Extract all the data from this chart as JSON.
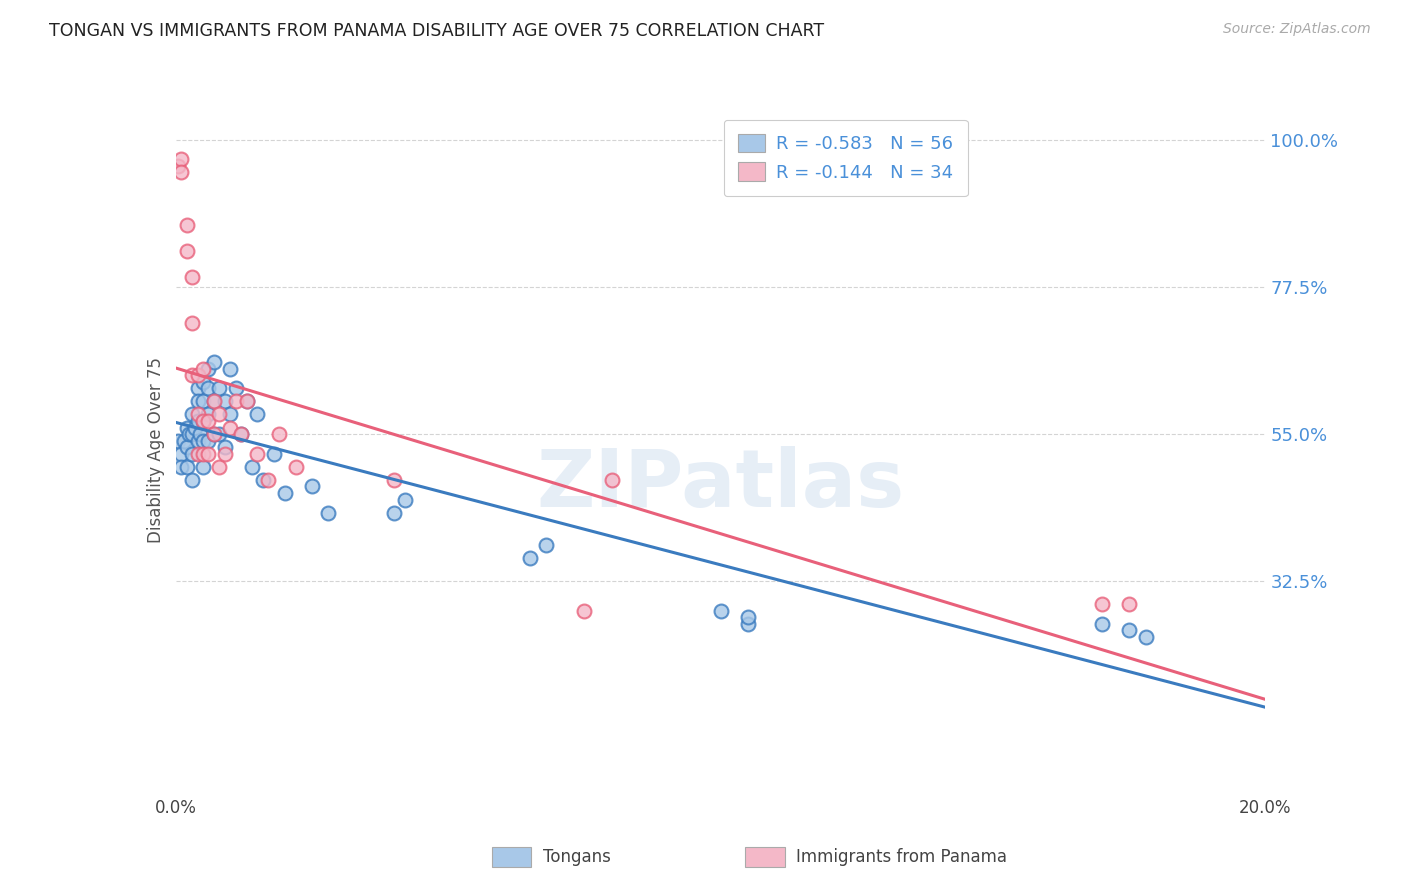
{
  "title": "TONGAN VS IMMIGRANTS FROM PANAMA DISABILITY AGE OVER 75 CORRELATION CHART",
  "source": "Source: ZipAtlas.com",
  "ylabel": "Disability Age Over 75",
  "x_min": 0.0,
  "x_max": 0.2,
  "y_min": 0.0,
  "y_max": 1.05,
  "yticks": [
    0.325,
    0.55,
    0.775,
    1.0
  ],
  "ytick_labels": [
    "32.5%",
    "55.0%",
    "77.5%",
    "100.0%"
  ],
  "legend_R_blue": "-0.583",
  "legend_N_blue": "56",
  "legend_R_pink": "-0.144",
  "legend_N_pink": "34",
  "color_blue": "#a8c8e8",
  "color_pink": "#f4b8c8",
  "color_blue_line": "#3a7bbf",
  "color_pink_line": "#e8607a",
  "color_blue_dark": "#3a7bbf",
  "color_pink_dark": "#e8607a",
  "color_label_blue": "#4a90d9",
  "watermark": "ZIPatlas",
  "background_color": "#ffffff",
  "grid_color": "#d0d0d0",
  "tongans_x": [
    0.0005,
    0.001,
    0.001,
    0.0015,
    0.002,
    0.002,
    0.002,
    0.0025,
    0.003,
    0.003,
    0.003,
    0.003,
    0.0035,
    0.004,
    0.004,
    0.004,
    0.004,
    0.0045,
    0.005,
    0.005,
    0.005,
    0.005,
    0.005,
    0.006,
    0.006,
    0.006,
    0.006,
    0.007,
    0.007,
    0.007,
    0.008,
    0.008,
    0.009,
    0.009,
    0.01,
    0.01,
    0.011,
    0.012,
    0.013,
    0.014,
    0.015,
    0.016,
    0.018,
    0.02,
    0.025,
    0.028,
    0.04,
    0.042,
    0.065,
    0.068,
    0.1,
    0.105,
    0.105,
    0.17,
    0.175,
    0.178
  ],
  "tongans_y": [
    0.54,
    0.52,
    0.5,
    0.54,
    0.56,
    0.53,
    0.5,
    0.55,
    0.58,
    0.55,
    0.52,
    0.48,
    0.56,
    0.62,
    0.6,
    0.57,
    0.54,
    0.55,
    0.63,
    0.6,
    0.57,
    0.54,
    0.5,
    0.65,
    0.62,
    0.58,
    0.54,
    0.66,
    0.6,
    0.55,
    0.62,
    0.55,
    0.6,
    0.53,
    0.65,
    0.58,
    0.62,
    0.55,
    0.6,
    0.5,
    0.58,
    0.48,
    0.52,
    0.46,
    0.47,
    0.43,
    0.43,
    0.45,
    0.36,
    0.38,
    0.28,
    0.26,
    0.27,
    0.26,
    0.25,
    0.24
  ],
  "panama_x": [
    0.0005,
    0.001,
    0.001,
    0.002,
    0.002,
    0.003,
    0.003,
    0.003,
    0.004,
    0.004,
    0.004,
    0.005,
    0.005,
    0.005,
    0.006,
    0.006,
    0.007,
    0.007,
    0.008,
    0.008,
    0.009,
    0.01,
    0.011,
    0.012,
    0.013,
    0.015,
    0.017,
    0.019,
    0.022,
    0.04,
    0.075,
    0.08,
    0.17,
    0.175
  ],
  "panama_y": [
    0.96,
    0.97,
    0.95,
    0.87,
    0.83,
    0.79,
    0.72,
    0.64,
    0.64,
    0.58,
    0.52,
    0.65,
    0.57,
    0.52,
    0.57,
    0.52,
    0.6,
    0.55,
    0.58,
    0.5,
    0.52,
    0.56,
    0.6,
    0.55,
    0.6,
    0.52,
    0.48,
    0.55,
    0.5,
    0.48,
    0.28,
    0.48,
    0.29,
    0.29
  ]
}
